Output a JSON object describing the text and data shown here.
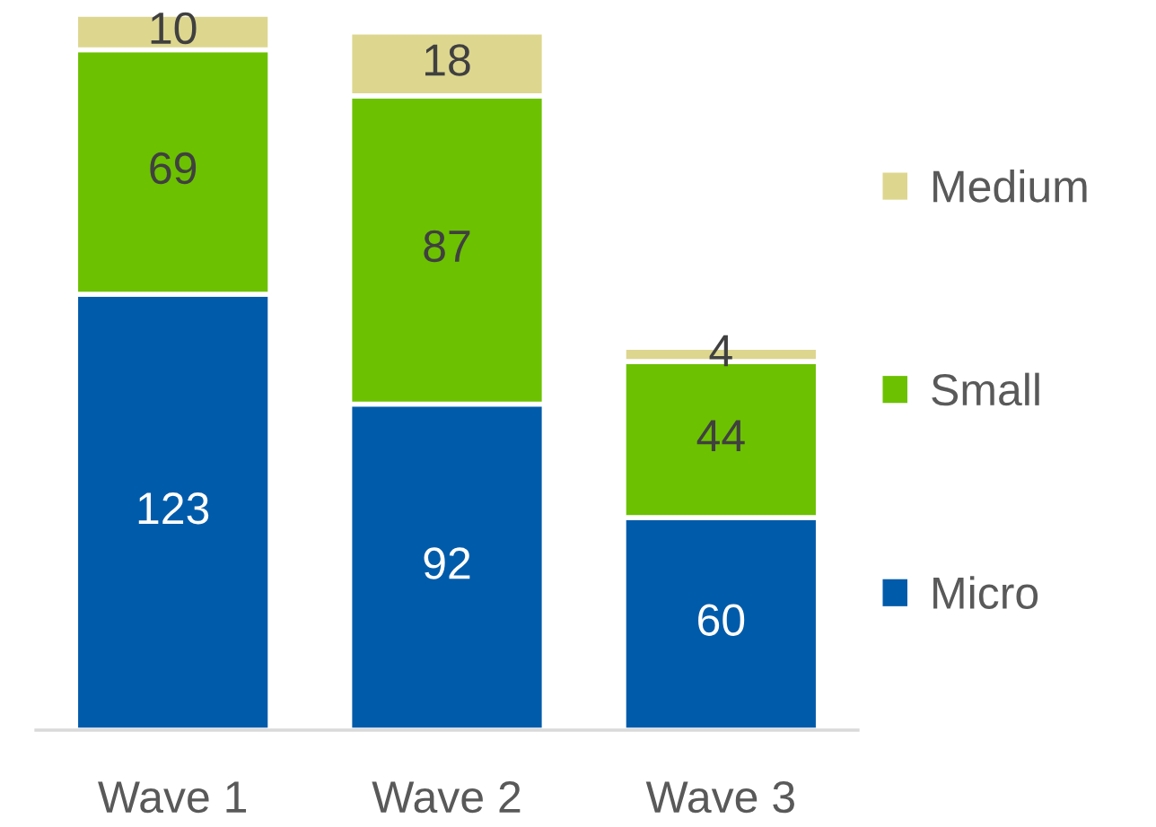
{
  "chart_data": {
    "type": "bar",
    "stacked": true,
    "categories": [
      "Wave 1",
      "Wave 2",
      "Wave 3"
    ],
    "series": [
      {
        "name": "Micro",
        "color": "#005baa",
        "values": [
          123,
          92,
          60
        ]
      },
      {
        "name": "Small",
        "color": "#6cc100",
        "values": [
          69,
          87,
          44
        ]
      },
      {
        "name": "Medium",
        "color": "#ddd68f",
        "values": [
          10,
          18,
          4
        ]
      }
    ],
    "data_labels": true,
    "legend": "right"
  }
}
